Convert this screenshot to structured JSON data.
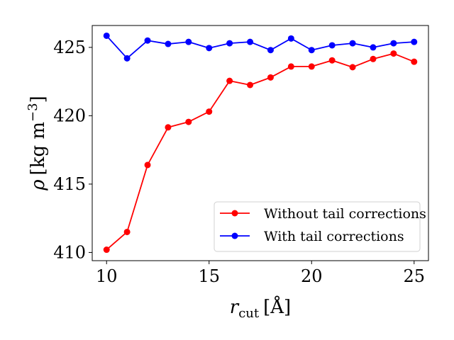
{
  "chart_data": {
    "type": "line",
    "title": "",
    "xlabel": {
      "main": "r",
      "sub": "cut",
      "unit": "[Å]"
    },
    "ylabel": {
      "main": "ρ",
      "unit_open": "[kg m",
      "unit_exp": "−3",
      "unit_close": "]"
    },
    "xlim": [
      9.3,
      25.7
    ],
    "ylim": [
      409.4,
      426.6
    ],
    "xticks": [
      10,
      15,
      20,
      25
    ],
    "yticks": [
      410,
      415,
      420,
      425
    ],
    "grid": false,
    "legend_position": "lower-right",
    "x": [
      10,
      11,
      12,
      13,
      14,
      15,
      16,
      17,
      18,
      19,
      20,
      21,
      22,
      23,
      24,
      25
    ],
    "series": [
      {
        "name": "Without tail corrections",
        "color": "#ff0000",
        "values": [
          410.2,
          411.5,
          416.4,
          419.15,
          419.55,
          420.3,
          422.55,
          422.25,
          422.8,
          423.6,
          423.6,
          424.05,
          423.55,
          424.15,
          424.55,
          423.95
        ]
      },
      {
        "name": "With tail corrections",
        "color": "#0000ff",
        "values": [
          425.85,
          424.2,
          425.5,
          425.25,
          425.4,
          424.95,
          425.3,
          425.4,
          424.8,
          425.65,
          424.8,
          425.15,
          425.3,
          425.0,
          425.3,
          425.4
        ]
      }
    ]
  }
}
